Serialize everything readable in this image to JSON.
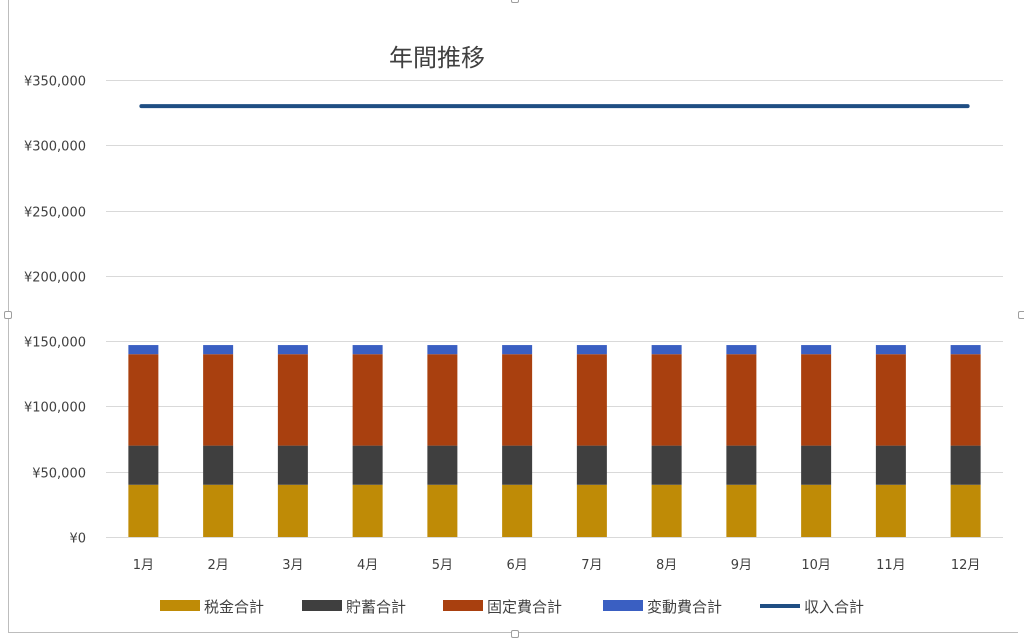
{
  "chart_data": {
    "type": "bar",
    "stacked": true,
    "title": "年間推移",
    "categories": [
      "1月",
      "2月",
      "3月",
      "4月",
      "5月",
      "6月",
      "7月",
      "8月",
      "9月",
      "10月",
      "11月",
      "12月"
    ],
    "y_ticks": [
      "¥0",
      "¥50,000",
      "¥100,000",
      "¥150,000",
      "¥200,000",
      "¥250,000",
      "¥300,000",
      "¥350,000"
    ],
    "ylim": [
      0,
      350000
    ],
    "grid": true,
    "legend_position": "bottom",
    "series": [
      {
        "name": "税金合計",
        "type": "bar",
        "color": "#bf8b06",
        "values": [
          40000,
          40000,
          40000,
          40000,
          40000,
          40000,
          40000,
          40000,
          40000,
          40000,
          40000,
          40000
        ]
      },
      {
        "name": "貯蓄合計",
        "type": "bar",
        "color": "#3f3f3f",
        "values": [
          30000,
          30000,
          30000,
          30000,
          30000,
          30000,
          30000,
          30000,
          30000,
          30000,
          30000,
          30000
        ]
      },
      {
        "name": "固定費合計",
        "type": "bar",
        "color": "#a9400f",
        "values": [
          70000,
          70000,
          70000,
          70000,
          70000,
          70000,
          70000,
          70000,
          70000,
          70000,
          70000,
          70000
        ]
      },
      {
        "name": "変動費合計",
        "type": "bar",
        "color": "#3a5fc2",
        "values": [
          7000,
          7000,
          7000,
          7000,
          7000,
          7000,
          7000,
          7000,
          7000,
          7000,
          7000,
          7000
        ]
      },
      {
        "name": "収入合計",
        "type": "line",
        "color": "#1f4e83",
        "values": [
          330000,
          330000,
          330000,
          330000,
          330000,
          330000,
          330000,
          330000,
          330000,
          330000,
          330000,
          330000
        ]
      }
    ]
  }
}
